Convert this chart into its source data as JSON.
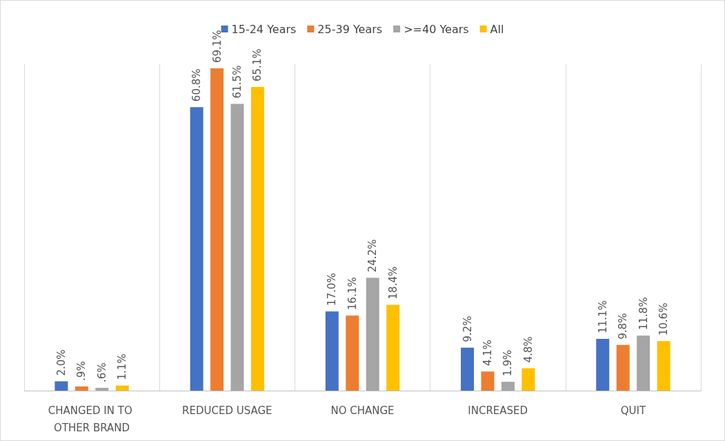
{
  "chart_data": {
    "type": "bar",
    "categories": [
      "CHANGED IN TO OTHER BRAND",
      "REDUCED USAGE",
      "NO CHANGE",
      "INCREASED",
      "QUIT"
    ],
    "series": [
      {
        "name": "15-24 Years",
        "color": "#4472c4",
        "values": [
          2.0,
          60.8,
          17.0,
          9.2,
          11.1
        ],
        "value_labels": [
          "2.0%",
          "60.8%",
          "17.0%",
          "9.2%",
          "11.1%"
        ]
      },
      {
        "name": "25-39 Years",
        "color": "#ed7d31",
        "values": [
          0.9,
          69.1,
          16.1,
          4.1,
          9.8
        ],
        "value_labels": [
          ".9%",
          "69.1%",
          "16.1%",
          "4.1%",
          "9.8%"
        ]
      },
      {
        "name": ">=40 Years",
        "color": "#a5a5a5",
        "values": [
          0.6,
          61.5,
          24.2,
          1.9,
          11.8
        ],
        "value_labels": [
          ".6%",
          "61.5%",
          "24.2%",
          "1.9%",
          "11.8%"
        ]
      },
      {
        "name": "All",
        "color": "#ffc000",
        "values": [
          1.1,
          65.1,
          18.4,
          4.8,
          10.6
        ],
        "value_labels": [
          "1.1%",
          "65.1%",
          "18.4%",
          "4.8%",
          "10.6%"
        ]
      }
    ],
    "grid": "x",
    "legend": "top"
  }
}
